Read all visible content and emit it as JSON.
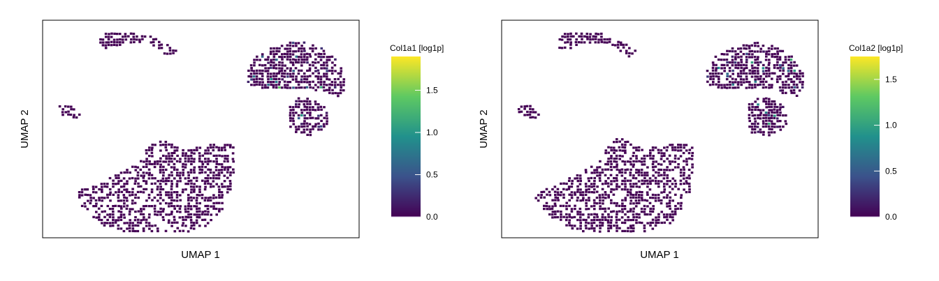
{
  "colormap": "viridis",
  "viridis_stops": [
    "#440154",
    "#3b528b",
    "#21918c",
    "#5ec962",
    "#fde725"
  ],
  "chart_data": [
    {
      "type": "scatter",
      "title": "",
      "xlabel": "UMAP 1",
      "ylabel": "UMAP 2",
      "colorbar_title": "Col1a1 [log1p]",
      "colorbar_range": [
        0,
        1.9
      ],
      "colorbar_ticks": [
        "0.0",
        "0.5",
        "1.0",
        "1.5"
      ],
      "colorbar_tick_values": [
        0,
        0.5,
        1.0,
        1.5
      ],
      "grid": false,
      "seed": 11
    },
    {
      "type": "scatter",
      "title": "",
      "xlabel": "UMAP 1",
      "ylabel": "UMAP 2",
      "colorbar_title": "Col1a2 [log1p]",
      "colorbar_range": [
        0,
        1.75
      ],
      "colorbar_ticks": [
        "0.0",
        "0.5",
        "1.0",
        "1.5"
      ],
      "colorbar_tick_values": [
        0,
        0.5,
        1.0,
        1.5
      ],
      "grid": false,
      "seed": 23
    }
  ]
}
